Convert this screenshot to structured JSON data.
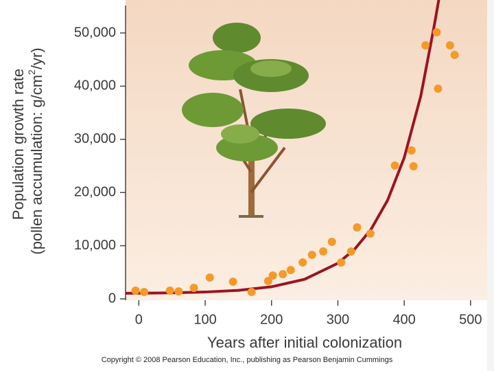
{
  "chart_data": {
    "type": "scatter",
    "xlabel": "Years after initial colonization",
    "ylabel_line1": "Population growth rate",
    "ylabel_line2": [
      "(pollen accumulation: g/cm",
      "2",
      "/yr)"
    ],
    "footer": "Copyright © 2008 Pearson Education, Inc., publishing as Pearson Benjamin Cummings",
    "xlim": [
      -20,
      525
    ],
    "ylim": [
      0,
      55000
    ],
    "xticks": [
      0,
      100,
      200,
      300,
      400,
      500
    ],
    "yticks": [
      {
        "value": 0,
        "label": "0"
      },
      {
        "value": 10000,
        "label": "10,000"
      },
      {
        "value": 20000,
        "label": "20,000"
      },
      {
        "value": 30000,
        "label": "30,000"
      },
      {
        "value": 40000,
        "label": "40,000"
      },
      {
        "value": 50000,
        "label": "50,000"
      }
    ],
    "series": [
      {
        "type": "scatter",
        "color": "#f39a2a",
        "x": [
          -5,
          8,
          47,
          60,
          83,
          107,
          142,
          170,
          195,
          202,
          217,
          229,
          247,
          261,
          278,
          291,
          305,
          320,
          329,
          349,
          386,
          411,
          414,
          432,
          449,
          451,
          469,
          476
        ],
        "values": [
          1550,
          1300,
          1550,
          1400,
          2070,
          4000,
          3230,
          1300,
          3360,
          4390,
          4650,
          5430,
          6850,
          8270,
          8910,
          10720,
          6850,
          8910,
          13440,
          12270,
          25060,
          27910,
          24930,
          47670,
          50130,
          39530,
          47670,
          45870
        ]
      },
      {
        "type": "line",
        "color": "#9b1422",
        "x": [
          -20,
          0,
          50,
          100,
          150,
          200,
          250,
          300,
          325,
          350,
          375,
          400,
          425,
          445,
          455
        ],
        "values": [
          1047,
          1063,
          1134,
          1284,
          1601,
          2272,
          3690,
          6697,
          9292,
          13065,
          18554,
          26537,
          38150,
          51200,
          58300
        ]
      }
    ]
  }
}
